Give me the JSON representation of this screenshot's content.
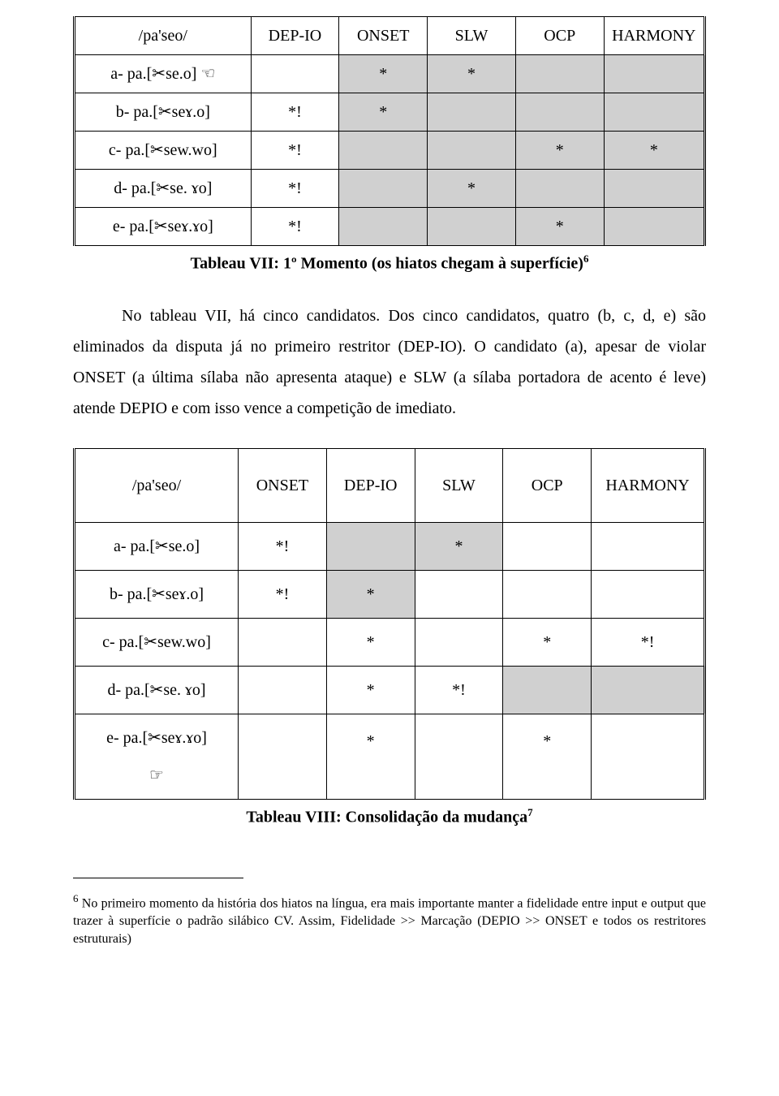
{
  "tableau1": {
    "headers": [
      "/pa'seo/",
      "DEP-IO",
      "ONSET",
      "SLW",
      "OCP",
      "HARMONY"
    ],
    "col_widths_percent": [
      28,
      14,
      14,
      14,
      14,
      16
    ],
    "shaded_bg": "#d0d0d0",
    "rows": [
      {
        "label": "a- pa.[✂se.o]  ☜",
        "cells": [
          "",
          "*",
          "*",
          "",
          ""
        ],
        "shaded_from_col": 2
      },
      {
        "label": "b- pa.[✂seɤ.o]",
        "cells": [
          "*!",
          "*",
          "",
          "",
          ""
        ],
        "shaded_from_col": 2
      },
      {
        "label": "c- pa.[✂sew.wo]",
        "cells": [
          "*!",
          "",
          "",
          "*",
          "*"
        ],
        "shaded_from_col": 2
      },
      {
        "label": "d- pa.[✂se. ɤo]",
        "cells": [
          "*!",
          "",
          "*",
          "",
          ""
        ],
        "shaded_from_col": 2
      },
      {
        "label": "e- pa.[✂seɤ.ɤo]",
        "cells": [
          "*!",
          "",
          "",
          "*",
          ""
        ],
        "shaded_from_col": 2
      }
    ],
    "caption": "Tableau VII: 1º Momento (os hiatos chegam à superfície)",
    "caption_sup": "6"
  },
  "paragraph": {
    "text": "No tableau VII, há cinco candidatos. Dos cinco candidatos, quatro (b, c, d, e) são eliminados da disputa já no primeiro restritor (DEP-IO). O candidato (a), apesar de violar ONSET (a última sílaba não apresenta ataque) e SLW (a sílaba portadora de acento é leve) atende DEPIO e com isso vence a competição de imediato."
  },
  "tableau2": {
    "headers": [
      "/pa'seo/",
      "ONSET",
      "DEP-IO",
      "SLW",
      "OCP",
      "HARMONY"
    ],
    "col_widths_percent": [
      26,
      14,
      14,
      14,
      14,
      18
    ],
    "shaded_bg": "#d0d0d0",
    "rows": [
      {
        "label": "a- pa.[✂se.o]",
        "cells": [
          "*!",
          "",
          "*",
          "",
          ""
        ],
        "shaded": [
          false,
          true,
          true,
          false,
          false
        ]
      },
      {
        "label": "b- pa.[✂seɤ.o]",
        "cells": [
          "*!",
          "*",
          "",
          "",
          ""
        ],
        "shaded": [
          false,
          true,
          false,
          false,
          false
        ]
      },
      {
        "label": "c- pa.[✂sew.wo]",
        "cells": [
          "",
          "*",
          "",
          "*",
          "*!"
        ],
        "shaded": [
          false,
          false,
          false,
          false,
          false
        ]
      },
      {
        "label": "d- pa.[✂se. ɤo]",
        "cells": [
          "",
          "*",
          "*!",
          "",
          ""
        ],
        "shaded": [
          false,
          false,
          false,
          true,
          true
        ]
      }
    ],
    "last_row": {
      "label_line1": "e- pa.[✂seɤ.ɤo]",
      "label_line2": "☞",
      "cells": [
        "",
        "*",
        "",
        "*",
        ""
      ],
      "shaded": [
        false,
        false,
        false,
        false,
        false
      ]
    },
    "caption": "Tableau VIII: Consolidação da mudança",
    "caption_sup": "7"
  },
  "footnote": {
    "number": "6",
    "text": " No primeiro momento da história dos hiatos na língua, era mais importante manter a fidelidade entre input e output que trazer à superfície o padrão silábico CV. Assim, Fidelidade >> Marcação (DEPIO >> ONSET e todos os restritores estruturais)"
  }
}
